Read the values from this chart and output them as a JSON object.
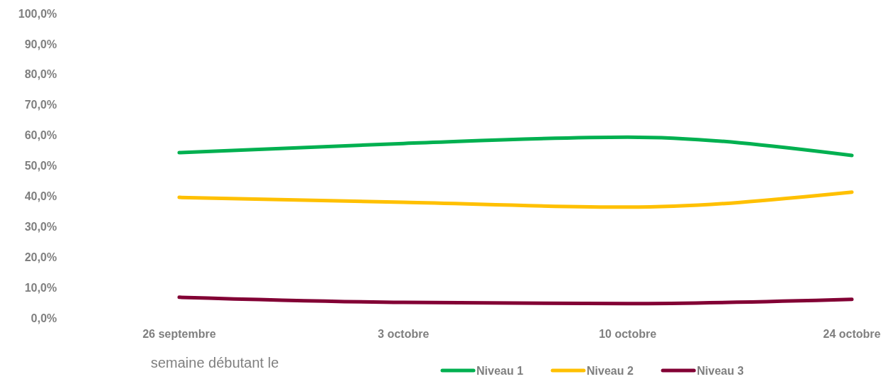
{
  "chart_data": {
    "type": "line",
    "categories": [
      "26 septembre",
      "3 octobre",
      "10 octobre",
      "24 octobre"
    ],
    "xlabel": "semaine débutant le",
    "ylim": [
      0,
      100
    ],
    "yticks": [
      {
        "value": 0,
        "label": "0,0%"
      },
      {
        "value": 10,
        "label": "10,0%"
      },
      {
        "value": 20,
        "label": "20,0%"
      },
      {
        "value": 30,
        "label": "30,0%"
      },
      {
        "value": 40,
        "label": "40,0%"
      },
      {
        "value": 50,
        "label": "50,0%"
      },
      {
        "value": 60,
        "label": "60,0%"
      },
      {
        "value": 70,
        "label": "70,0%"
      },
      {
        "value": 80,
        "label": "80,0%"
      },
      {
        "value": 90,
        "label": "90,0%"
      },
      {
        "value": 100,
        "label": "100,0%"
      }
    ],
    "series": [
      {
        "name": "Niveau 1",
        "color": "#00b050",
        "values": [
          54.3,
          57.3,
          59.4,
          53.4
        ]
      },
      {
        "name": "Niveau 2",
        "color": "#ffc000",
        "values": [
          39.6,
          38.0,
          36.4,
          41.3
        ]
      },
      {
        "name": "Niveau 3",
        "color": "#820034",
        "values": [
          6.8,
          5.1,
          4.7,
          6.1
        ]
      }
    ],
    "legend": "bottom",
    "grid": false,
    "marker": "none",
    "line_style": "solid"
  }
}
